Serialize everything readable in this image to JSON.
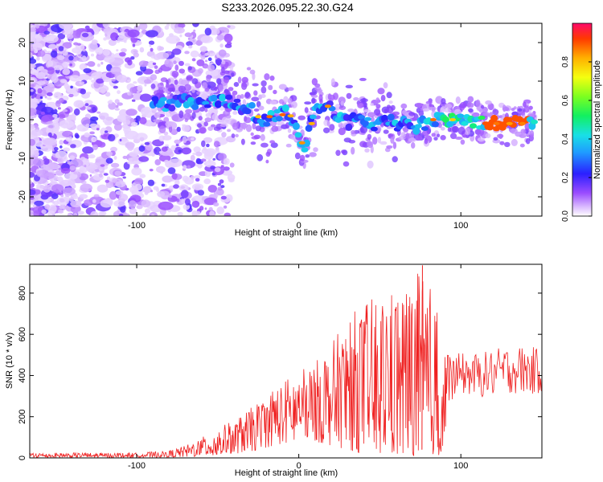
{
  "title": "S233.2026.095.22.30.G24",
  "chart_data": [
    {
      "type": "heatmap",
      "xlabel": "Height of straight line (km)",
      "ylabel": "Frequency (Hz)",
      "xlim": [
        -166,
        150
      ],
      "ylim": [
        -25,
        25
      ],
      "xticks": [
        -100,
        0,
        100
      ],
      "yticks": [
        -20,
        -10,
        0,
        10,
        20
      ],
      "colorbar": {
        "label": "Normalized spectral amplitude",
        "range": [
          0,
          1
        ],
        "ticks": [
          0.0,
          0.2,
          0.4,
          0.6,
          0.8
        ]
      },
      "ridge": [
        {
          "x": -90,
          "y": 4
        },
        {
          "x": -80,
          "y": 4
        },
        {
          "x": -70,
          "y": 5
        },
        {
          "x": -60,
          "y": 4
        },
        {
          "x": -50,
          "y": 5
        },
        {
          "x": -40,
          "y": 4
        },
        {
          "x": -30,
          "y": 3
        },
        {
          "x": -25,
          "y": 0
        },
        {
          "x": -20,
          "y": 0
        },
        {
          "x": -12,
          "y": 1
        },
        {
          "x": -8,
          "y": 3
        },
        {
          "x": -5,
          "y": 1
        },
        {
          "x": 0,
          "y": -4
        },
        {
          "x": 3,
          "y": -8
        },
        {
          "x": 7,
          "y": -1
        },
        {
          "x": 10,
          "y": 2
        },
        {
          "x": 15,
          "y": 4
        },
        {
          "x": 20,
          "y": 3
        },
        {
          "x": 25,
          "y": 1
        },
        {
          "x": 30,
          "y": -1
        },
        {
          "x": 35,
          "y": 1
        },
        {
          "x": 40,
          "y": 0
        },
        {
          "x": 45,
          "y": -2
        },
        {
          "x": 50,
          "y": 1
        },
        {
          "x": 55,
          "y": 0
        },
        {
          "x": 60,
          "y": -2
        },
        {
          "x": 65,
          "y": -1
        },
        {
          "x": 70,
          "y": -2
        },
        {
          "x": 75,
          "y": -1
        },
        {
          "x": 80,
          "y": -1
        },
        {
          "x": 85,
          "y": 0
        },
        {
          "x": 95,
          "y": 0
        },
        {
          "x": 105,
          "y": 0
        },
        {
          "x": 115,
          "y": -1
        },
        {
          "x": 125,
          "y": -1
        },
        {
          "x": 135,
          "y": -1
        },
        {
          "x": 146,
          "y": 0
        }
      ]
    },
    {
      "type": "line",
      "xlabel": "Height of straight line (km)",
      "ylabel": "SNR (10 * v/v)",
      "xlim": [
        -166,
        150
      ],
      "ylim": [
        0,
        940
      ],
      "xticks": [
        -100,
        0,
        100
      ],
      "yticks": [
        0,
        200,
        400,
        600,
        800
      ],
      "series": [
        {
          "name": "SNR",
          "color": "#ef2020",
          "envelope": [
            {
              "x": -166,
              "lo": 2,
              "hi": 25
            },
            {
              "x": -100,
              "lo": 2,
              "hi": 25
            },
            {
              "x": -80,
              "lo": 3,
              "hi": 35
            },
            {
              "x": -70,
              "lo": 5,
              "hi": 60
            },
            {
              "x": -60,
              "lo": 8,
              "hi": 100
            },
            {
              "x": -50,
              "lo": 12,
              "hi": 140
            },
            {
              "x": -40,
              "lo": 20,
              "hi": 190
            },
            {
              "x": -30,
              "lo": 30,
              "hi": 240
            },
            {
              "x": -20,
              "lo": 50,
              "hi": 320
            },
            {
              "x": -10,
              "lo": 70,
              "hi": 380
            },
            {
              "x": 0,
              "lo": 80,
              "hi": 420
            },
            {
              "x": 10,
              "lo": 80,
              "hi": 470
            },
            {
              "x": 20,
              "lo": 60,
              "hi": 560
            },
            {
              "x": 30,
              "lo": 40,
              "hi": 680
            },
            {
              "x": 40,
              "lo": 20,
              "hi": 760
            },
            {
              "x": 50,
              "lo": 20,
              "hi": 800
            },
            {
              "x": 60,
              "lo": 10,
              "hi": 850
            },
            {
              "x": 70,
              "lo": 10,
              "hi": 870
            },
            {
              "x": 76,
              "lo": 20,
              "hi": 935
            },
            {
              "x": 85,
              "lo": 10,
              "hi": 760
            },
            {
              "x": 90,
              "lo": 10,
              "hi": 700
            },
            {
              "x": 92,
              "lo": 250,
              "hi": 520
            },
            {
              "x": 100,
              "lo": 300,
              "hi": 520
            },
            {
              "x": 110,
              "lo": 280,
              "hi": 520
            },
            {
              "x": 120,
              "lo": 280,
              "hi": 540
            },
            {
              "x": 130,
              "lo": 300,
              "hi": 560
            },
            {
              "x": 140,
              "lo": 290,
              "hi": 560
            },
            {
              "x": 150,
              "lo": 300,
              "hi": 540
            }
          ]
        }
      ]
    }
  ]
}
